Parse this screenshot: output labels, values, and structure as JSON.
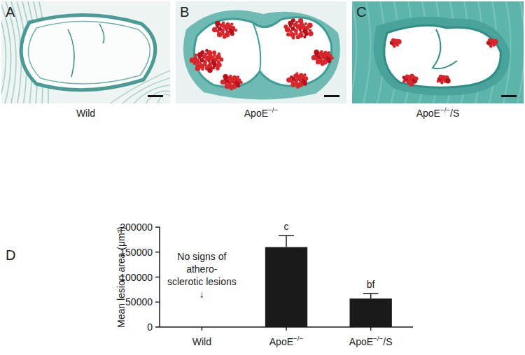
{
  "panels": [
    {
      "label": "A",
      "caption": "Wild"
    },
    {
      "label": "B",
      "caption": "ApoE−/−"
    },
    {
      "label": "C",
      "caption": "ApoE−/−/S"
    }
  ],
  "chart_data": {
    "type": "bar",
    "panel_label": "D",
    "y_label": "Mean lesion area (μm²)",
    "categories": [
      "Wild",
      "ApoE−/−",
      "ApoE−/−/S"
    ],
    "values": [
      0,
      160000,
      57000
    ],
    "errors": [
      null,
      23000,
      10000
    ],
    "significance": [
      null,
      "c",
      "bf"
    ],
    "annotations": [
      {
        "category": 0,
        "lines": [
          "No signs of",
          "athero-",
          "sclerotic lesions",
          "↓"
        ]
      }
    ],
    "color": "#1a1a1a",
    "ylim": [
      0,
      200000
    ],
    "yticks": [
      0,
      50000,
      100000,
      150000,
      200000
    ],
    "grid": false
  }
}
